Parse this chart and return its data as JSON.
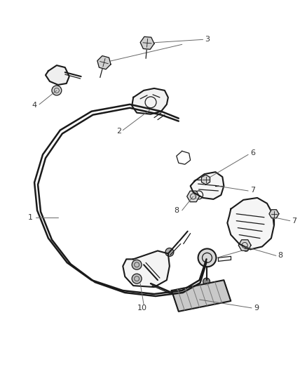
{
  "background_color": "#ffffff",
  "line_color": "#1a1a1a",
  "label_color": "#333333",
  "callout_color": "#666666",
  "fig_width": 4.38,
  "fig_height": 5.33,
  "dpi": 100
}
